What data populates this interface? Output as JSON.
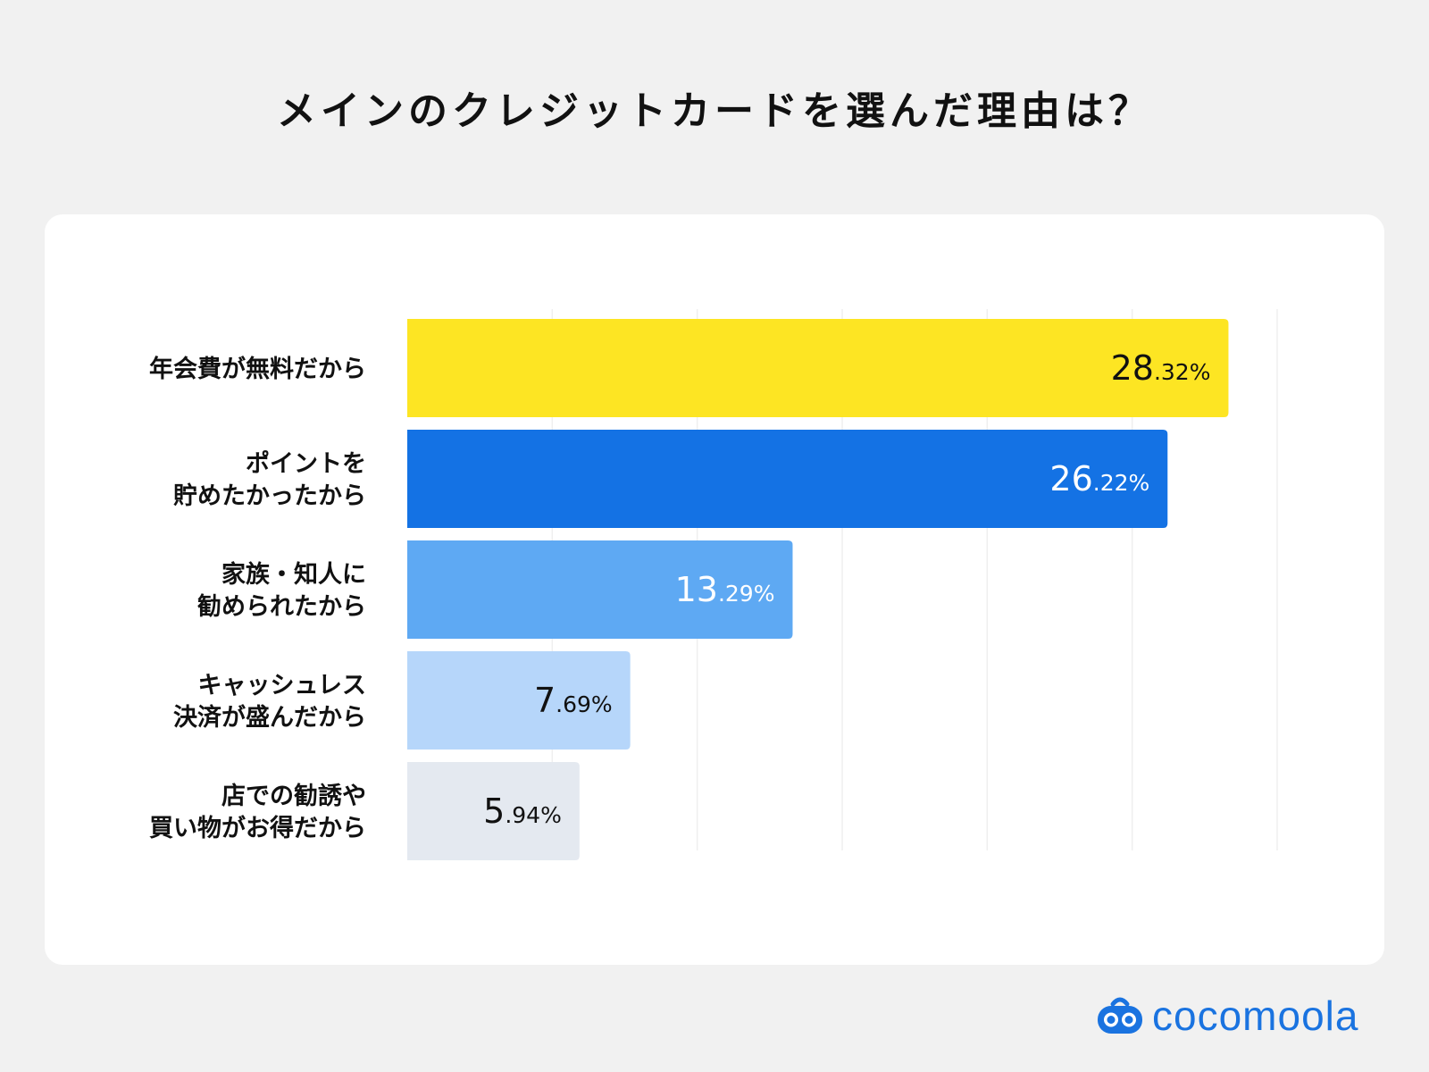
{
  "title": "メインのクレジットカードを選んだ理由は？",
  "logo": {
    "text": "cocomoola",
    "icon": "robot-face-icon",
    "color": "#1a73e0"
  },
  "chart_data": {
    "type": "bar",
    "orientation": "horizontal",
    "title": "メインのクレジットカードを選んだ理由は？",
    "xlabel": "",
    "ylabel": "",
    "xlim": [
      0,
      30
    ],
    "grid": true,
    "value_suffix": "%",
    "categories": [
      [
        "年会費が無料だから"
      ],
      [
        "ポイントを",
        "貯めたかったから"
      ],
      [
        "家族・知人に",
        "勧められたから"
      ],
      [
        "キャッシュレス",
        "決済が盛んだから"
      ],
      [
        "店での勧誘や",
        "買い物がお得だから"
      ]
    ],
    "values": [
      28.32,
      26.22,
      13.29,
      7.69,
      5.94
    ],
    "value_labels": [
      {
        "int": "28",
        "dec": ".32%"
      },
      {
        "int": "26",
        "dec": ".22%"
      },
      {
        "int": "13",
        "dec": ".29%"
      },
      {
        "int": "7",
        "dec": ".69%"
      },
      {
        "int": "5",
        "dec": ".94%"
      }
    ],
    "colors": [
      "#fde523",
      "#1472e4",
      "#5ea9f3",
      "#b6d6fa",
      "#e4e9f0"
    ],
    "label_colors": [
      "#111111",
      "#ffffff",
      "#ffffff",
      "#111111",
      "#111111"
    ]
  }
}
